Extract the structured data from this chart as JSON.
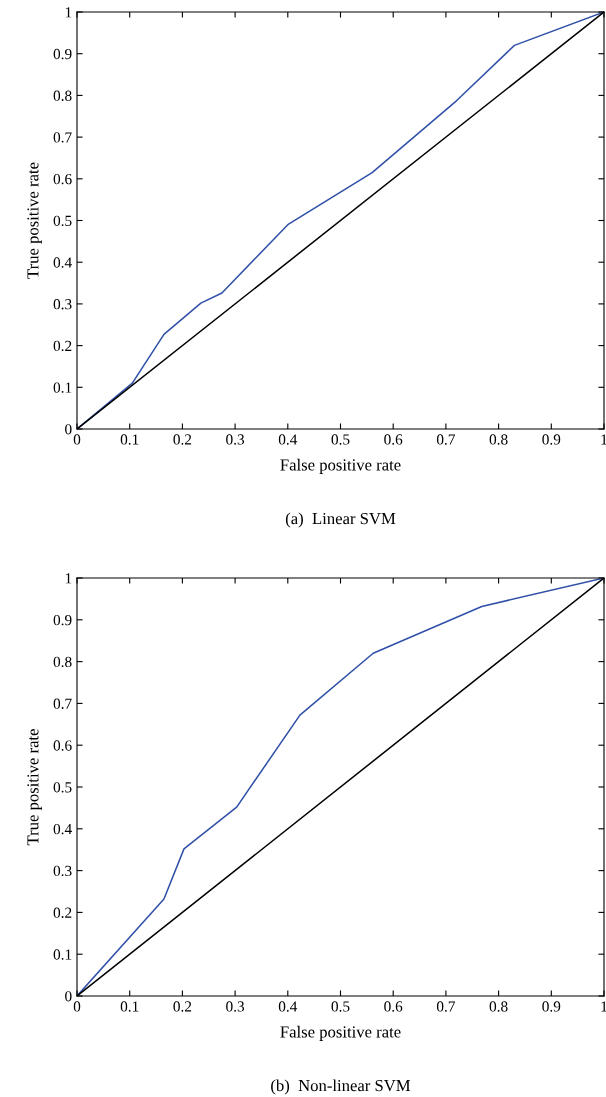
{
  "chart_data": [
    {
      "type": "line",
      "xlabel": "False positive rate",
      "ylabel": "True positive rate",
      "annotations": [
        "(a)  Linear SVM"
      ],
      "xlim": [
        0,
        1
      ],
      "ylim": [
        0,
        1
      ],
      "xticks": [
        0,
        0.1,
        0.2,
        0.3,
        0.4,
        0.5,
        0.6,
        0.7,
        0.8,
        0.9,
        1
      ],
      "yticks": [
        0,
        0.1,
        0.2,
        0.3,
        0.4,
        0.5,
        0.6,
        0.7,
        0.8,
        0.9,
        1
      ],
      "grid": false,
      "legend": false,
      "series": [
        {
          "color": "#3050a8",
          "x": [
            0,
            0.105,
            0.165,
            0.235,
            0.275,
            0.4,
            0.56,
            0.72,
            0.83,
            1
          ],
          "values": [
            0,
            0.11,
            0.227,
            0.302,
            0.326,
            0.49,
            0.615,
            0.787,
            0.92,
            1
          ]
        },
        {
          "color": "#000000",
          "x": [
            0,
            1
          ],
          "values": [
            0,
            1
          ]
        }
      ]
    },
    {
      "type": "line",
      "xlabel": "False positive rate",
      "ylabel": "True positive rate",
      "annotations": [
        "(b)  Non-linear SVM"
      ],
      "xlim": [
        0,
        1
      ],
      "ylim": [
        0,
        1
      ],
      "xticks": [
        0,
        0.1,
        0.2,
        0.3,
        0.4,
        0.5,
        0.6,
        0.7,
        0.8,
        0.9,
        1
      ],
      "yticks": [
        0,
        0.1,
        0.2,
        0.3,
        0.4,
        0.5,
        0.6,
        0.7,
        0.8,
        0.9,
        1
      ],
      "grid": false,
      "legend": false,
      "series": [
        {
          "color": "#3050a8",
          "x": [
            0,
            0.165,
            0.203,
            0.303,
            0.423,
            0.562,
            0.768,
            1
          ],
          "values": [
            0,
            0.232,
            0.352,
            0.452,
            0.672,
            0.82,
            0.932,
            1
          ]
        },
        {
          "color": "#000000",
          "x": [
            0,
            1
          ],
          "values": [
            0,
            1
          ]
        }
      ]
    }
  ]
}
